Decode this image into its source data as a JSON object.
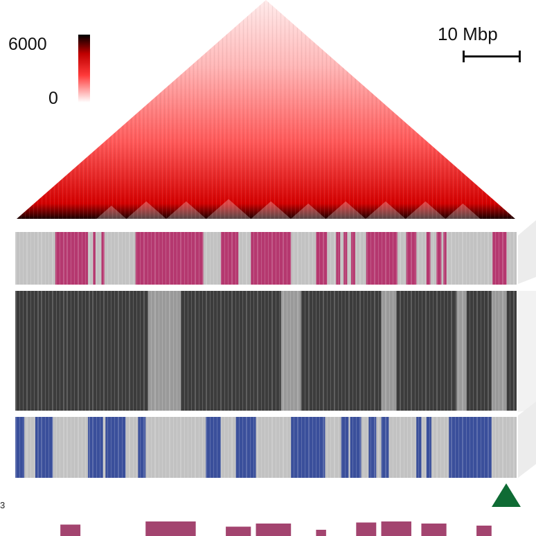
{
  "colorbar": {
    "max_label": "6000",
    "min_label": "0",
    "colors": [
      "#ffffff",
      "#ff3a3a",
      "#c00000",
      "#000000"
    ]
  },
  "scalebar": {
    "label": "10 Mbp"
  },
  "edge_label": "3",
  "panels": {
    "magenta_track": {
      "color": "#b5386f",
      "background": "#c2c2c2",
      "blocks": [
        [
          0.08,
          0.145
        ],
        [
          0.155,
          0.16
        ],
        [
          0.172,
          0.178
        ],
        [
          0.24,
          0.375
        ],
        [
          0.41,
          0.445
        ],
        [
          0.47,
          0.55
        ],
        [
          0.6,
          0.622
        ],
        [
          0.64,
          0.648
        ],
        [
          0.655,
          0.662
        ],
        [
          0.67,
          0.678
        ],
        [
          0.7,
          0.762
        ],
        [
          0.78,
          0.8
        ],
        [
          0.82,
          0.828
        ],
        [
          0.84,
          0.85
        ],
        [
          0.854,
          0.86
        ],
        [
          0.952,
          0.98
        ]
      ]
    },
    "gray_track": {
      "color": "#3c3c3c",
      "background": "#9a9a9a",
      "light_blocks": [
        [
          0.265,
          0.33
        ],
        [
          0.53,
          0.57
        ],
        [
          0.73,
          0.76
        ],
        [
          0.88,
          0.9
        ],
        [
          0.95,
          0.98
        ]
      ]
    },
    "blue_track": {
      "color": "#3a4f9b",
      "background": "#c2c2c2",
      "blocks": [
        [
          0.0,
          0.018
        ],
        [
          0.04,
          0.075
        ],
        [
          0.145,
          0.175
        ],
        [
          0.18,
          0.22
        ],
        [
          0.245,
          0.26
        ],
        [
          0.38,
          0.41
        ],
        [
          0.44,
          0.48
        ],
        [
          0.55,
          0.618
        ],
        [
          0.65,
          0.665
        ],
        [
          0.668,
          0.69
        ],
        [
          0.705,
          0.72
        ],
        [
          0.73,
          0.745
        ],
        [
          0.8,
          0.81
        ],
        [
          0.82,
          0.83
        ],
        [
          0.865,
          0.95
        ]
      ]
    },
    "bottom_bars": {
      "color": "#a3446f",
      "bars": [
        [
          0.09,
          0.13,
          0.55
        ],
        [
          0.26,
          0.36,
          0.7
        ],
        [
          0.42,
          0.47,
          0.45
        ],
        [
          0.48,
          0.55,
          0.6
        ],
        [
          0.6,
          0.62,
          0.3
        ],
        [
          0.68,
          0.72,
          0.65
        ],
        [
          0.73,
          0.79,
          0.7
        ],
        [
          0.81,
          0.86,
          0.6
        ],
        [
          0.92,
          0.95,
          0.5
        ]
      ]
    }
  },
  "marker": {
    "color": "#0f6b34"
  }
}
